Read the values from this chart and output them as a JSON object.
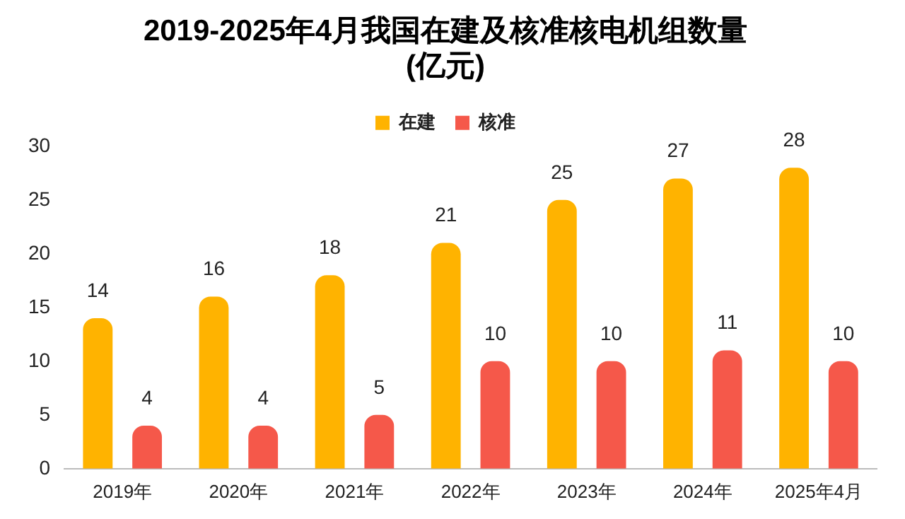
{
  "chart_data": {
    "type": "bar",
    "title": "2019-2025年4月我国在建及核准核电机组数量\n(亿元)",
    "categories": [
      "2019年",
      "2020年",
      "2021年",
      "2022年",
      "2023年",
      "2024年",
      "2025年4月"
    ],
    "series": [
      {
        "name": "在建",
        "color": "#ffb300",
        "values": [
          14,
          16,
          18,
          21,
          25,
          27,
          28
        ]
      },
      {
        "name": "核准",
        "color": "#f5584a",
        "values": [
          4,
          4,
          5,
          10,
          10,
          11,
          10
        ]
      }
    ],
    "ylim": [
      0,
      30
    ],
    "yticks": [
      0,
      5,
      10,
      15,
      20,
      25,
      30
    ],
    "grid": false,
    "legend": "top",
    "data_labels": true
  }
}
